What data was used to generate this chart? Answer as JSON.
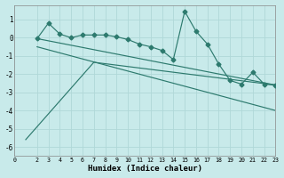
{
  "bg_color": "#c8eaea",
  "grid_color": "#b0d8d8",
  "line_color": "#2d7a6e",
  "xlabel": "Humidex (Indice chaleur)",
  "xlim": [
    0,
    23
  ],
  "ylim": [
    -6.5,
    1.8
  ],
  "yticks": [
    -6,
    -5,
    -4,
    -3,
    -2,
    -1,
    0,
    1
  ],
  "xticks": [
    0,
    2,
    3,
    4,
    5,
    6,
    7,
    8,
    9,
    10,
    11,
    12,
    13,
    14,
    15,
    16,
    17,
    18,
    19,
    20,
    21,
    22,
    23
  ],
  "line1_x": [
    2,
    3,
    4,
    5,
    6,
    7,
    8,
    9,
    10,
    11,
    12,
    13,
    14,
    15,
    16,
    17,
    18,
    19,
    20,
    21,
    22,
    23
  ],
  "line1_y": [
    -0.05,
    0.8,
    0.2,
    0.0,
    0.15,
    0.15,
    0.15,
    0.05,
    -0.1,
    -0.35,
    -0.5,
    -0.7,
    -1.2,
    1.45,
    0.35,
    -0.35,
    -1.45,
    -2.35,
    -2.55,
    -1.9,
    -2.55,
    -2.6
  ],
  "line2_x": [
    2,
    23
  ],
  "line2_y": [
    -0.05,
    -2.6
  ],
  "line3_x": [
    2,
    23
  ],
  "line3_y": [
    -0.5,
    -4.0
  ],
  "line4_x": [
    1,
    7,
    23
  ],
  "line4_y": [
    -5.6,
    -1.35,
    -2.6
  ],
  "marker": "D",
  "markersize": 2.5,
  "linewidth": 0.85
}
